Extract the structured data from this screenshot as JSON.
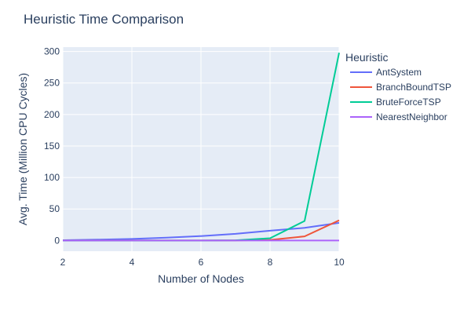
{
  "chart_data": {
    "type": "line",
    "title": "Heuristic Time Comparison",
    "xlabel": "Number of Nodes",
    "ylabel": "Avg. Time (Million CPU Cycles)",
    "xlim": [
      2,
      10
    ],
    "ylim": [
      -17,
      307
    ],
    "x_ticks": [
      2,
      4,
      6,
      8,
      10
    ],
    "y_ticks": [
      0,
      50,
      100,
      150,
      200,
      250,
      300
    ],
    "grid": true,
    "background": "#e5ecf6",
    "gridline_color": "#ffffff",
    "legend_title": "Heuristic",
    "legend_position": "right",
    "x": [
      2,
      3,
      4,
      5,
      6,
      7,
      8,
      9,
      10
    ],
    "series": [
      {
        "name": "AntSystem",
        "color": "#636efa",
        "values": [
          0.5,
          1.3,
          2.5,
          4.5,
          7.0,
          10.5,
          15.5,
          20.0,
          28.0
        ]
      },
      {
        "name": "BranchBoundTSP",
        "color": "#ef553b",
        "values": [
          0,
          0,
          0,
          0,
          0,
          0.2,
          1.0,
          6.5,
          32.0
        ]
      },
      {
        "name": "BruteForceTSP",
        "color": "#00cc96",
        "values": [
          0,
          0,
          0,
          0,
          0,
          0.3,
          3.5,
          31.0,
          298.0
        ]
      },
      {
        "name": "NearestNeighbor",
        "color": "#ab63fa",
        "values": [
          0,
          0,
          0,
          0,
          0,
          0,
          0,
          0,
          0
        ]
      }
    ]
  }
}
